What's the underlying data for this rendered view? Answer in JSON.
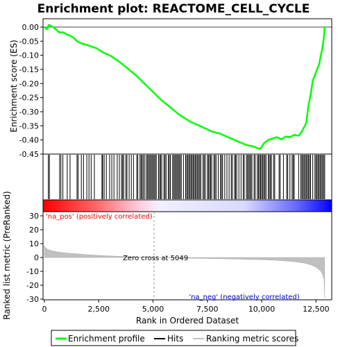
{
  "chart_data": {
    "type": "line",
    "title": "Enrichment plot: REACTOME_CELL_CYCLE",
    "es_panel": {
      "ylabel": "Enrichment score (ES)",
      "ylim": [
        -0.45,
        0.0
      ],
      "yticks": [
        "0.00",
        "-0.05",
        "-0.10",
        "-0.15",
        "-0.20",
        "-0.25",
        "-0.30",
        "-0.35",
        "-0.40",
        "-0.45"
      ],
      "ytick_values": [
        0.0,
        -0.05,
        -0.1,
        -0.15,
        -0.2,
        -0.25,
        -0.3,
        -0.35,
        -0.4,
        -0.45
      ],
      "series": [
        {
          "name": "Enrichment profile",
          "color": "#00ff00",
          "x": [
            0,
            120,
            200,
            400,
            700,
            850,
            1000,
            1300,
            1500,
            1700,
            1900,
            2200,
            2400,
            2700,
            3000,
            3400,
            3800,
            4200,
            4600,
            5000,
            5400,
            5800,
            6200,
            6700,
            7200,
            7700,
            8100,
            8500,
            8900,
            9300,
            9600,
            9900,
            10000,
            10100,
            10300,
            10500,
            10700,
            10900,
            11100,
            11300,
            11500,
            11700,
            11850,
            11950,
            12050,
            12150,
            12250,
            12350,
            12450,
            12550,
            12650,
            12720,
            12780,
            12830,
            12870,
            12900
          ],
          "y": [
            0.0,
            -0.008,
            0.008,
            0.0,
            -0.02,
            -0.018,
            -0.025,
            -0.035,
            -0.05,
            -0.058,
            -0.062,
            -0.07,
            -0.075,
            -0.09,
            -0.1,
            -0.12,
            -0.145,
            -0.17,
            -0.2,
            -0.23,
            -0.26,
            -0.285,
            -0.31,
            -0.335,
            -0.352,
            -0.37,
            -0.378,
            -0.392,
            -0.405,
            -0.418,
            -0.423,
            -0.432,
            -0.425,
            -0.412,
            -0.4,
            -0.395,
            -0.39,
            -0.398,
            -0.388,
            -0.39,
            -0.382,
            -0.385,
            -0.37,
            -0.355,
            -0.34,
            -0.28,
            -0.24,
            -0.19,
            -0.17,
            -0.15,
            -0.13,
            -0.1,
            -0.08,
            -0.055,
            -0.03,
            0.003
          ]
        }
      ]
    },
    "hits": {
      "name": "Hits",
      "color": "#000000",
      "positions": [
        180,
        230,
        700,
        760,
        850,
        1050,
        1180,
        1500,
        1550,
        1700,
        1800,
        1950,
        2050,
        2150,
        2300,
        2650,
        2680,
        2750,
        2850,
        3000,
        3100,
        3200,
        3350,
        3450,
        3550,
        3600,
        3650,
        3750,
        3800,
        3900,
        4000,
        4100,
        4250,
        4300,
        4400,
        4450,
        4500,
        4550,
        4620,
        4700,
        4750,
        4800,
        4850,
        4900,
        4950,
        5000,
        5050,
        5100,
        5150,
        5250,
        5300,
        5350,
        5400,
        5500,
        5550,
        5600,
        5700,
        5750,
        5800,
        5900,
        5950,
        6000,
        6050,
        6100,
        6150,
        6200,
        6250,
        6300,
        6400,
        6500,
        6550,
        6600,
        6650,
        6700,
        6750,
        6800,
        6850,
        6900,
        6950,
        7000,
        7050,
        7100,
        7150,
        7200,
        7300,
        7350,
        7400,
        7500,
        7550,
        7600,
        7650,
        7700,
        7800,
        7850,
        7900,
        8000,
        8100,
        8150,
        8200,
        8300,
        8400,
        8500,
        8600,
        8650,
        8750,
        8800,
        8850,
        8950,
        9050,
        9150,
        9200,
        9300,
        9350,
        9400,
        9450,
        9500,
        9550,
        9650,
        9700,
        9800,
        9850,
        9900,
        9950,
        10000,
        10050,
        10100,
        10150,
        10200,
        10300,
        10350,
        10400,
        10450,
        10550,
        10600,
        10800,
        10850,
        11000,
        11150,
        11200,
        11300,
        11400,
        11450,
        11500,
        11700,
        11800,
        11850,
        11900,
        11950,
        12000,
        12050,
        12100,
        12150,
        12200,
        12250,
        12350,
        12450,
        12500,
        12550,
        12600,
        12650,
        12700,
        12750,
        12800,
        12850,
        12900
      ]
    },
    "rank_panel": {
      "ylabel": "Ranked list metric (PreRanked)",
      "xlabel": "Rank in Ordered Dataset",
      "xlim": [
        0,
        13000
      ],
      "xticks": [
        "0",
        "2,500",
        "5,000",
        "7,500",
        "10,000",
        "12,500"
      ],
      "xtick_values": [
        0,
        2500,
        5000,
        7500,
        10000,
        12500
      ],
      "ylim": [
        -30,
        30
      ],
      "yticks": [
        "30",
        "20",
        "10",
        "0",
        "-10",
        "-20",
        "-30"
      ],
      "ytick_values": [
        30,
        20,
        10,
        0,
        -10,
        -20,
        -30
      ],
      "series": [
        {
          "name": "Ranking metric scores",
          "color": "#c0c0c0",
          "x": [
            0,
            50,
            150,
            300,
            600,
            1000,
            1500,
            2000,
            2500,
            3000,
            3500,
            4000,
            4500,
            5049,
            6000,
            7000,
            8000,
            9000,
            10000,
            10500,
            11000,
            11500,
            12000,
            12300,
            12500,
            12700,
            12800,
            12870,
            12900
          ],
          "y": [
            8.5,
            7.0,
            5.8,
            5.0,
            4.0,
            3.2,
            2.6,
            2.0,
            1.5,
            1.1,
            0.8,
            0.5,
            0.25,
            0.0,
            -0.3,
            -0.6,
            -0.9,
            -1.2,
            -1.6,
            -1.9,
            -2.4,
            -3.0,
            -4.2,
            -5.5,
            -7.0,
            -9.5,
            -12.0,
            -16.0,
            -29.0
          ]
        }
      ],
      "zero_cross_label": "Zero cross at 5049",
      "zero_cross": 5049,
      "pos_label": "'na_pos' (positively correlated)",
      "neg_label": "'na_neg' (negatively correlated)",
      "pos_color": "#ff0000",
      "neg_color": "#0000ff"
    },
    "legend": {
      "placement": "bottom",
      "items": [
        {
          "label": "Enrichment profile",
          "color": "#00ff00"
        },
        {
          "label": "Hits",
          "color": "#000000"
        },
        {
          "label": "Ranking metric scores",
          "color": "#c0c0c0"
        }
      ]
    }
  }
}
